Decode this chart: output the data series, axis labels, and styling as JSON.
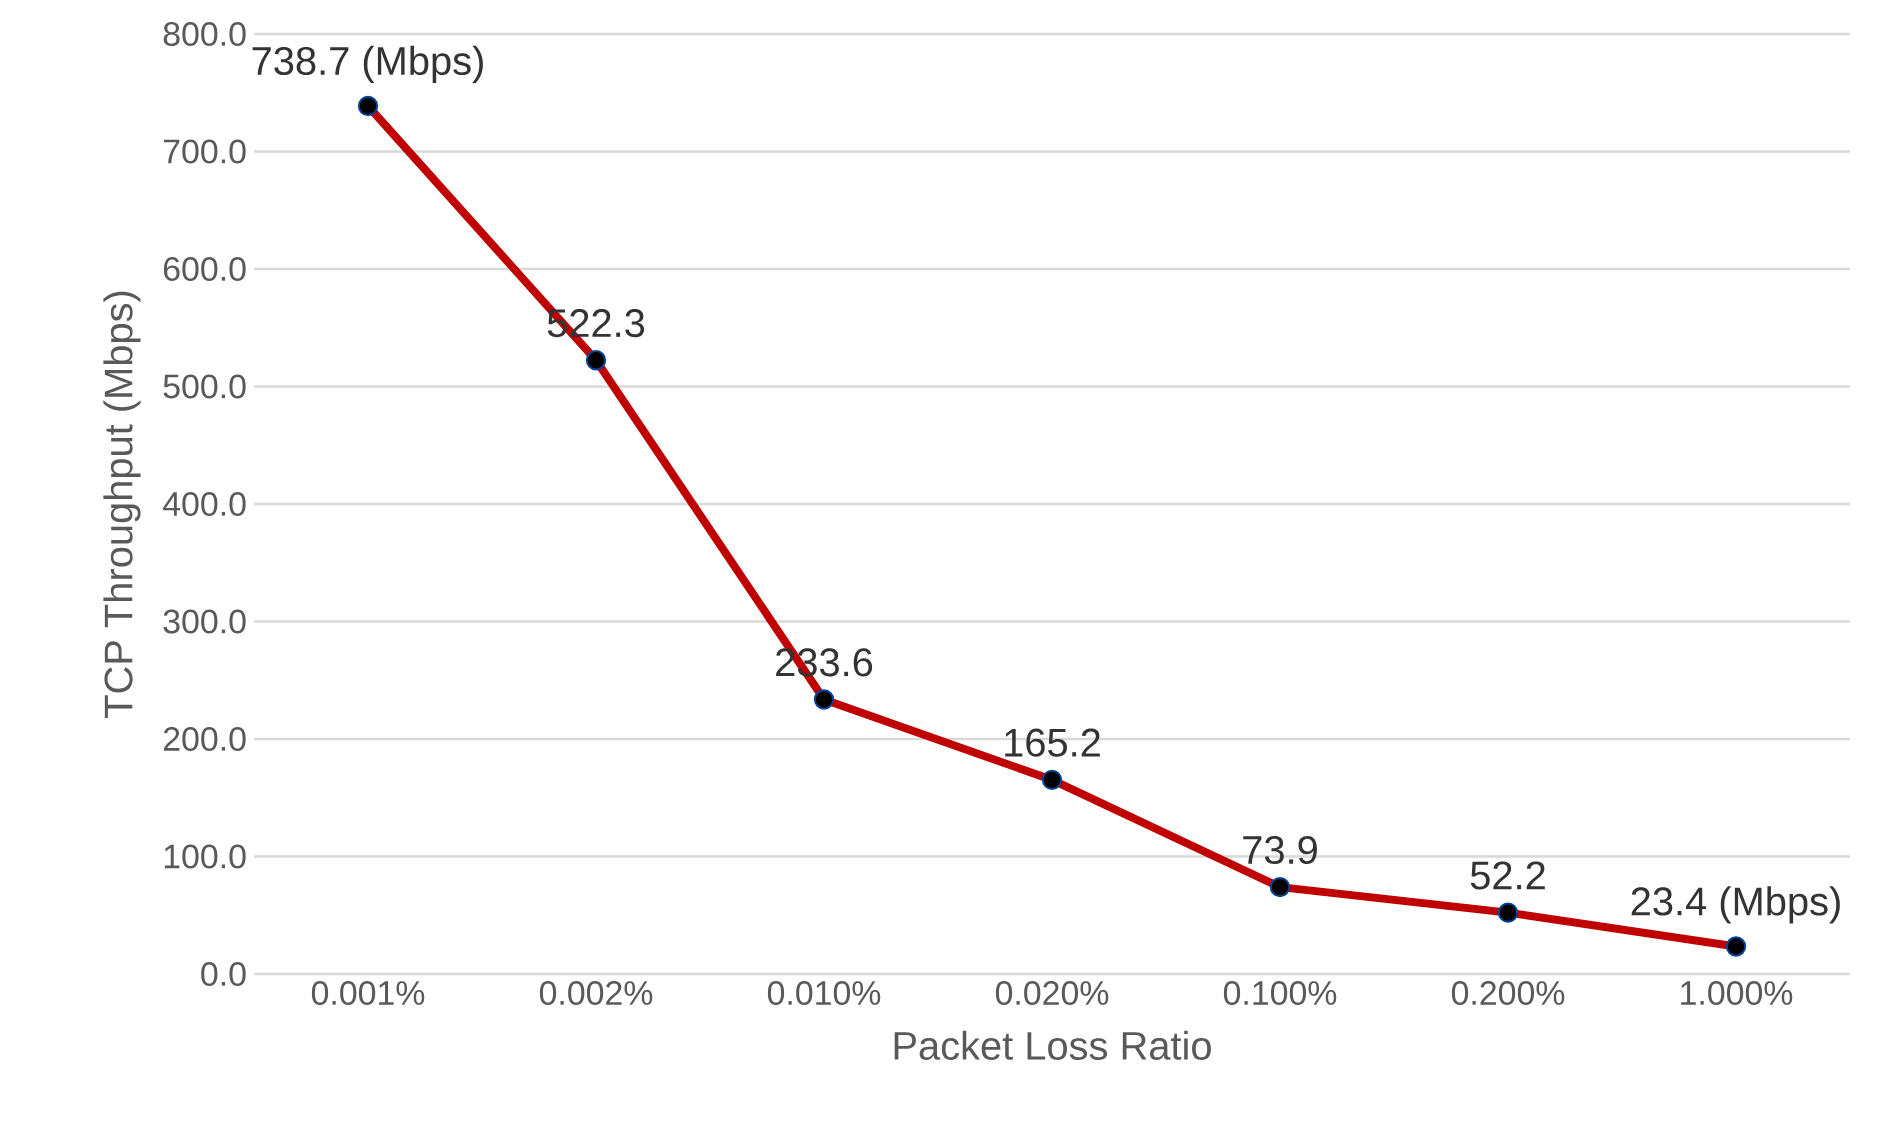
{
  "chart_data": {
    "type": "line",
    "xlabel": "Packet Loss Ratio",
    "ylabel": "TCP Throughput (Mbps)",
    "categories": [
      "0.001%",
      "0.002%",
      "0.010%",
      "0.020%",
      "0.100%",
      "0.200%",
      "1.000%"
    ],
    "series": [
      {
        "color": "#c00000",
        "values": [
          738.7,
          522.3,
          233.6,
          165.2,
          73.9,
          52.2,
          23.4
        ],
        "value_labels": [
          "738.7 (Mbps)",
          "522.3",
          "233.6",
          "165.2",
          "73.9",
          "52.2",
          "23.4 (Mbps)"
        ]
      }
    ],
    "ylim": [
      0,
      800
    ],
    "yticks": [
      {
        "value": 0,
        "label": "0.0"
      },
      {
        "value": 100,
        "label": "100.0"
      },
      {
        "value": 200,
        "label": "200.0"
      },
      {
        "value": 300,
        "label": "300.0"
      },
      {
        "value": 400,
        "label": "400.0"
      },
      {
        "value": 500,
        "label": "500.0"
      },
      {
        "value": 600,
        "label": "600.0"
      },
      {
        "value": 700,
        "label": "700.0"
      },
      {
        "value": 800,
        "label": "800.0"
      }
    ],
    "grid": "y",
    "marker": "circle",
    "line_style": "solid"
  }
}
